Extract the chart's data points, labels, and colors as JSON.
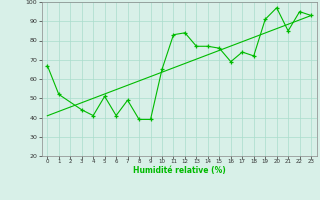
{
  "x": [
    0,
    1,
    2,
    3,
    4,
    5,
    6,
    7,
    8,
    9,
    10,
    11,
    12,
    13,
    14,
    15,
    16,
    17,
    18,
    19,
    20,
    21,
    22,
    23
  ],
  "y_data": [
    67,
    52,
    null,
    44,
    41,
    51,
    41,
    49,
    39,
    39,
    65,
    83,
    84,
    77,
    77,
    76,
    69,
    74,
    72,
    91,
    97,
    85,
    95,
    93
  ],
  "line_color": "#00bb00",
  "marker": "+",
  "bg_color": "#d8f0e8",
  "grid_color": "#aaddcc",
  "xlabel": "Humidité relative (%)",
  "ylim": [
    20,
    100
  ],
  "xlim": [
    -0.5,
    23.5
  ],
  "yticks": [
    20,
    30,
    40,
    50,
    60,
    70,
    80,
    90,
    100
  ],
  "xticks": [
    0,
    1,
    2,
    3,
    4,
    5,
    6,
    7,
    8,
    9,
    10,
    11,
    12,
    13,
    14,
    15,
    16,
    17,
    18,
    19,
    20,
    21,
    22,
    23
  ]
}
